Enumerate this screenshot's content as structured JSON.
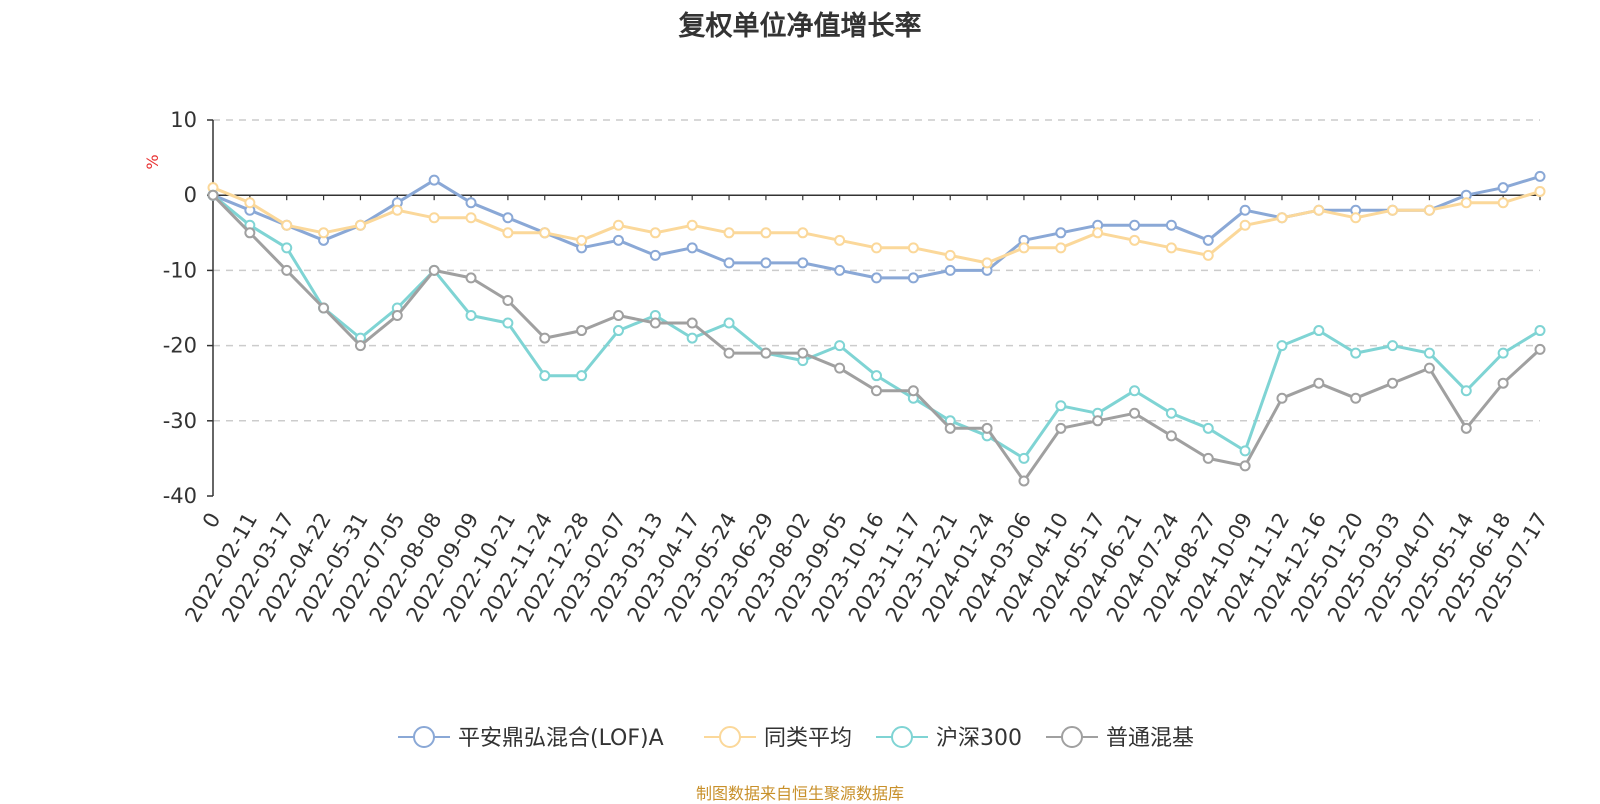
{
  "chart_data": {
    "type": "line",
    "title": "复权单位净值增长率",
    "ylabel": "%",
    "ylim": [
      -40,
      10
    ],
    "yticks": [
      10,
      0,
      -10,
      -20,
      -30,
      -40
    ],
    "grid": true,
    "legend_position": "bottom",
    "footnote": "制图数据来自恒生聚源数据库",
    "x": [
      "0",
      "2022-02-11",
      "2022-03-17",
      "2022-04-22",
      "2022-05-31",
      "2022-07-05",
      "2022-08-08",
      "2022-09-09",
      "2022-10-21",
      "2022-11-24",
      "2022-12-28",
      "2023-02-07",
      "2023-03-13",
      "2023-04-17",
      "2023-05-24",
      "2023-06-29",
      "2023-08-02",
      "2023-09-05",
      "2023-10-16",
      "2023-11-17",
      "2023-12-21",
      "2024-01-24",
      "2024-03-06",
      "2024-04-10",
      "2024-05-17",
      "2024-06-21",
      "2024-07-24",
      "2024-08-27",
      "2024-10-09",
      "2024-11-12",
      "2024-12-16",
      "2025-01-20",
      "2025-03-03",
      "2025-04-07",
      "2025-05-14",
      "2025-06-18",
      "2025-07-17"
    ],
    "series": [
      {
        "name": "平安鼎弘混合(LOF)A",
        "color": "#8aa8d6",
        "values": [
          0,
          -2,
          -4,
          -6,
          -4,
          -1,
          2,
          -1,
          -3,
          -5,
          -7,
          -6,
          -8,
          -7,
          -9,
          -9,
          -9,
          -10,
          -11,
          -11,
          -10,
          -10,
          -6,
          -5,
          -4,
          -4,
          -4,
          -6,
          -2,
          -3,
          -2,
          -2,
          -2,
          -2,
          0,
          1,
          2.5
        ]
      },
      {
        "name": "同类平均",
        "color": "#fbd89a",
        "values": [
          1,
          -1,
          -4,
          -5,
          -4,
          -2,
          -3,
          -3,
          -5,
          -5,
          -6,
          -4,
          -5,
          -4,
          -5,
          -5,
          -5,
          -6,
          -7,
          -7,
          -8,
          -9,
          -7,
          -7,
          -5,
          -6,
          -7,
          -8,
          -4,
          -3,
          -2,
          -3,
          -2,
          -2,
          -1,
          -1,
          0.5
        ]
      },
      {
        "name": "沪深300",
        "color": "#7fd4d4",
        "values": [
          0,
          -4,
          -7,
          -15,
          -19,
          -15,
          -10,
          -16,
          -17,
          -24,
          -24,
          -18,
          -16,
          -19,
          -17,
          -21,
          -22,
          -20,
          -24,
          -27,
          -30,
          -32,
          -35,
          -28,
          -29,
          -26,
          -29,
          -31,
          -34,
          -20,
          -18,
          -21,
          -20,
          -21,
          -26,
          -21,
          -18
        ]
      },
      {
        "name": "普通混基",
        "color": "#a0a0a0",
        "values": [
          0,
          -5,
          -10,
          -15,
          -20,
          -16,
          -10,
          -11,
          -14,
          -19,
          -18,
          -16,
          -17,
          -17,
          -21,
          -21,
          -21,
          -23,
          -26,
          -26,
          -31,
          -31,
          -38,
          -31,
          -30,
          -29,
          -32,
          -35,
          -36,
          -27,
          -25,
          -27,
          -25,
          -23,
          -31,
          -25,
          -20.5
        ]
      }
    ]
  }
}
